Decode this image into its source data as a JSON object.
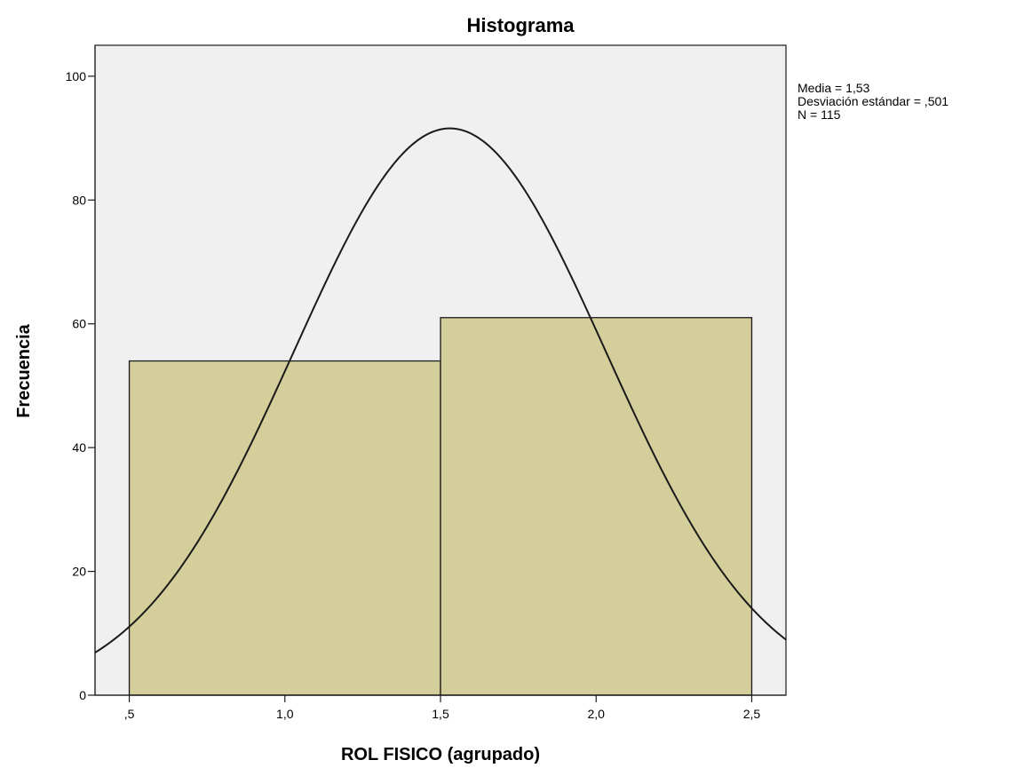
{
  "chart_data": {
    "type": "bar",
    "title": "Histograma",
    "xlabel": "ROL FISICO (agrupado)",
    "ylabel": "Frecuencia",
    "xlim": [
      0.39,
      2.61
    ],
    "ylim": [
      0,
      105
    ],
    "x_ticks": [
      0.5,
      1.0,
      1.5,
      2.0,
      2.5
    ],
    "x_tick_labels": [
      ",5",
      "1,0",
      "1,5",
      "2,0",
      "2,5"
    ],
    "y_ticks": [
      0,
      20,
      40,
      60,
      80,
      100
    ],
    "y_tick_labels": [
      "0",
      "20",
      "40",
      "60",
      "80",
      "100"
    ],
    "bins": [
      {
        "from": 0.5,
        "to": 1.5,
        "value": 54
      },
      {
        "from": 1.5,
        "to": 2.5,
        "value": 61
      }
    ],
    "normal_curve": {
      "mean": 1.53,
      "sd": 0.501,
      "n": 115,
      "bin_width": 1.0
    },
    "stats": [
      "Media = 1,53",
      "Desviación estándar = ,501",
      "N = 115"
    ],
    "colors": {
      "plot_background": "#f0f0f0",
      "bar_fill": "#d3ce9a",
      "stroke": "#1a1a1a"
    },
    "grid": false,
    "legend": "none"
  }
}
